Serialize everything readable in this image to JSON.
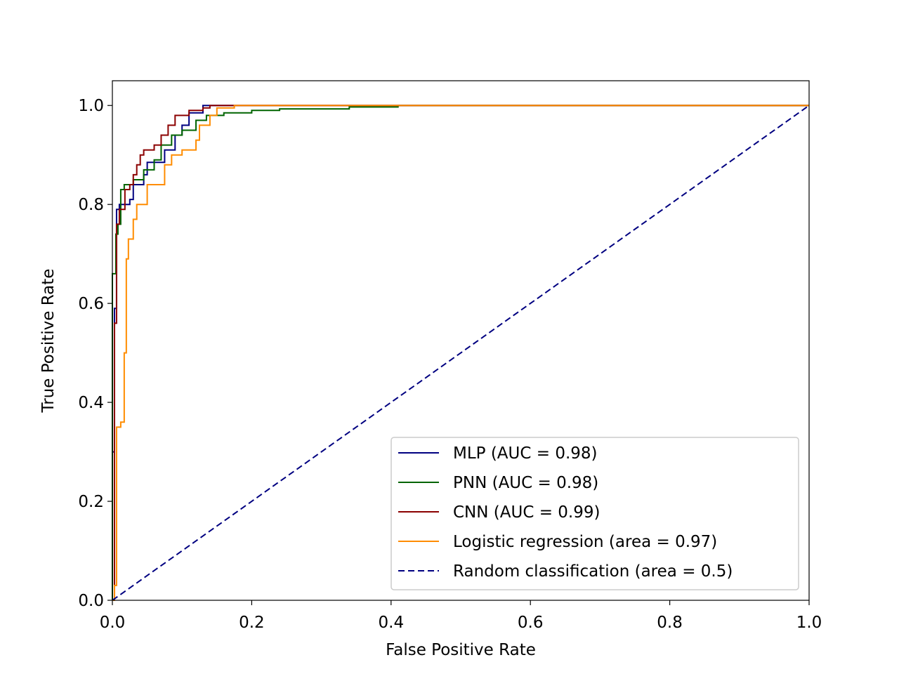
{
  "chart_data": {
    "type": "line",
    "xlabel": "False Positive Rate",
    "ylabel": "True Positive Rate",
    "xlim": [
      0,
      1
    ],
    "ylim": [
      0,
      1.05
    ],
    "xticks": [
      {
        "value": 0,
        "label": "0.0"
      },
      0.2,
      0.4,
      0.6,
      0.8,
      {
        "value": 1,
        "label": "1.0"
      }
    ],
    "yticks": [
      {
        "value": 0,
        "label": "0.0"
      },
      0.2,
      0.4,
      0.6,
      0.8,
      {
        "value": 1,
        "label": "1.0"
      }
    ],
    "legend": "lower right",
    "series": [
      {
        "name": "MLP (AUC = 0.98)",
        "color": "#000080",
        "linestyle": "solid",
        "x": [
          0,
          0,
          0.003,
          0.003,
          0.006,
          0.006,
          0.01,
          0.01,
          0.025,
          0.025,
          0.03,
          0.03,
          0.045,
          0.045,
          0.05,
          0.05,
          0.075,
          0.075,
          0.09,
          0.09,
          0.1,
          0.1,
          0.11,
          0.11,
          0.13,
          0.13,
          1
        ],
        "values": [
          0,
          0.3,
          0.3,
          0.59,
          0.59,
          0.79,
          0.79,
          0.8,
          0.8,
          0.81,
          0.81,
          0.84,
          0.84,
          0.86,
          0.86,
          0.885,
          0.885,
          0.91,
          0.91,
          0.94,
          0.94,
          0.96,
          0.96,
          0.985,
          0.985,
          1,
          1
        ]
      },
      {
        "name": "PNN (AUC = 0.98)",
        "color": "#006400",
        "linestyle": "solid",
        "x": [
          0,
          0,
          0.005,
          0.005,
          0.008,
          0.008,
          0.012,
          0.012,
          0.017,
          0.017,
          0.03,
          0.03,
          0.045,
          0.045,
          0.06,
          0.06,
          0.07,
          0.07,
          0.085,
          0.085,
          0.1,
          0.1,
          0.12,
          0.12,
          0.135,
          0.135,
          0.16,
          0.16,
          0.2,
          0.2,
          0.24,
          0.24,
          0.34,
          0.34,
          0.41,
          0.41,
          1
        ],
        "values": [
          0,
          0.66,
          0.66,
          0.74,
          0.74,
          0.76,
          0.76,
          0.83,
          0.83,
          0.84,
          0.84,
          0.85,
          0.85,
          0.87,
          0.87,
          0.89,
          0.89,
          0.92,
          0.92,
          0.94,
          0.94,
          0.95,
          0.95,
          0.97,
          0.97,
          0.98,
          0.98,
          0.985,
          0.985,
          0.99,
          0.99,
          0.993,
          0.993,
          0.997,
          0.997,
          1,
          1
        ]
      },
      {
        "name": "CNN (AUC = 0.99)",
        "color": "#8b0000",
        "linestyle": "solid",
        "x": [
          0,
          0.003,
          0.003,
          0.006,
          0.006,
          0.01,
          0.01,
          0.018,
          0.018,
          0.025,
          0.025,
          0.03,
          0.03,
          0.035,
          0.035,
          0.04,
          0.04,
          0.045,
          0.045,
          0.06,
          0.06,
          0.07,
          0.07,
          0.08,
          0.08,
          0.09,
          0.09,
          0.11,
          0.11,
          0.13,
          0.13,
          0.14,
          0.14,
          1
        ],
        "values": [
          0,
          0,
          0.56,
          0.56,
          0.76,
          0.76,
          0.79,
          0.79,
          0.83,
          0.83,
          0.84,
          0.84,
          0.86,
          0.86,
          0.88,
          0.88,
          0.9,
          0.9,
          0.91,
          0.91,
          0.92,
          0.92,
          0.94,
          0.94,
          0.96,
          0.96,
          0.98,
          0.98,
          0.99,
          0.99,
          0.995,
          0.995,
          1,
          1
        ]
      },
      {
        "name": "Logistic regression (area = 0.97)",
        "color": "#ff8c00",
        "linestyle": "solid",
        "x": [
          0,
          0.003,
          0.003,
          0.006,
          0.006,
          0.012,
          0.012,
          0.017,
          0.017,
          0.02,
          0.02,
          0.023,
          0.023,
          0.03,
          0.03,
          0.035,
          0.035,
          0.05,
          0.05,
          0.075,
          0.075,
          0.085,
          0.085,
          0.1,
          0.1,
          0.12,
          0.12,
          0.125,
          0.125,
          0.14,
          0.14,
          0.15,
          0.15,
          0.175,
          0.175,
          1
        ],
        "values": [
          0,
          0,
          0.03,
          0.03,
          0.35,
          0.35,
          0.36,
          0.36,
          0.5,
          0.5,
          0.69,
          0.69,
          0.73,
          0.73,
          0.77,
          0.77,
          0.8,
          0.8,
          0.84,
          0.84,
          0.88,
          0.88,
          0.9,
          0.9,
          0.91,
          0.91,
          0.93,
          0.93,
          0.96,
          0.96,
          0.98,
          0.98,
          0.995,
          0.995,
          1,
          1
        ]
      },
      {
        "name": "Random classification (area = 0.5)",
        "color": "#000080",
        "linestyle": "dashed",
        "x": [
          0,
          1
        ],
        "values": [
          0,
          1
        ]
      }
    ]
  }
}
